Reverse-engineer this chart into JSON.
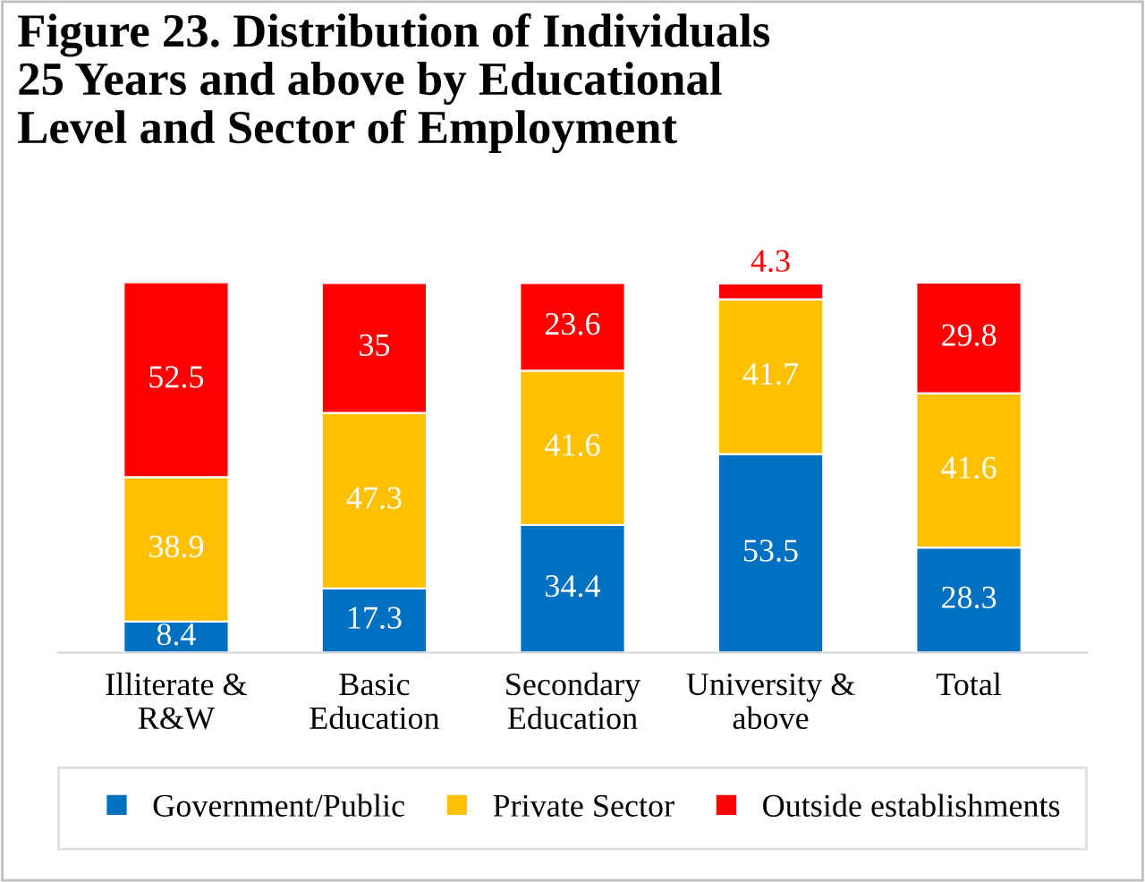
{
  "chart_data": {
    "type": "bar",
    "title": "Figure 23. Distribution of Individuals\n25 Years and above by Educational\nLevel and Sector of Employment",
    "categories": [
      "Illiterate &\nR&W",
      "Basic\nEducation",
      "Secondary\nEducation",
      "University &\nabove",
      "Total"
    ],
    "stacked": true,
    "data_labels": true,
    "legend": "bottom",
    "series": [
      {
        "name": "Government/Public",
        "color": "#0070c0",
        "values": [
          8.4,
          17.3,
          34.4,
          53.5,
          28.3
        ]
      },
      {
        "name": "Private Sector",
        "color": "#ffc000",
        "values": [
          38.9,
          47.3,
          41.6,
          41.7,
          41.6
        ]
      },
      {
        "name": "Outside establishments",
        "color": "#ff0000",
        "values": [
          52.5,
          35,
          23.6,
          4.3,
          29.8
        ]
      }
    ]
  }
}
